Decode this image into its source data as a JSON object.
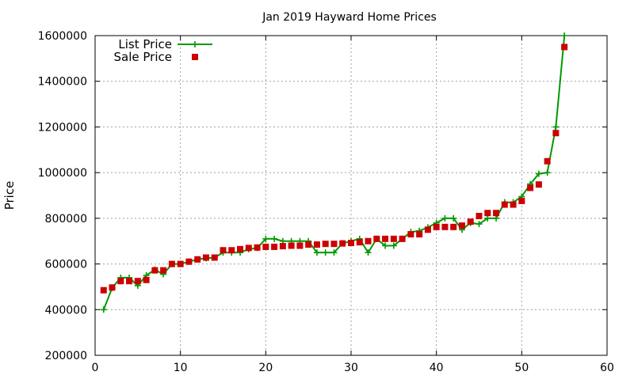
{
  "chart_data": {
    "type": "line",
    "title": "Jan 2019 Hayward Home Prices",
    "xlabel": "",
    "ylabel": "Price",
    "xlim": [
      0,
      60
    ],
    "ylim": [
      200000,
      1600000
    ],
    "x_ticks": [
      0,
      10,
      20,
      30,
      40,
      50,
      60
    ],
    "y_ticks": [
      200000,
      400000,
      600000,
      800000,
      1000000,
      1200000,
      1400000,
      1600000
    ],
    "grid": true,
    "legend_position": "top-left",
    "series": [
      {
        "name": "List Price",
        "style": "line-points",
        "color": "#009900",
        "x": [
          1,
          2,
          3,
          4,
          5,
          6,
          7,
          8,
          9,
          10,
          11,
          12,
          13,
          14,
          15,
          16,
          17,
          18,
          19,
          20,
          21,
          22,
          23,
          24,
          25,
          26,
          27,
          28,
          29,
          30,
          31,
          32,
          33,
          34,
          35,
          36,
          37,
          38,
          39,
          40,
          41,
          42,
          43,
          44,
          45,
          46,
          47,
          48,
          49,
          50,
          51,
          52,
          53,
          54,
          55
        ],
        "values": [
          400000,
          495000,
          540000,
          540000,
          505000,
          550000,
          575000,
          555000,
          600000,
          600000,
          610000,
          620000,
          625000,
          628000,
          650000,
          650000,
          650000,
          665000,
          670000,
          710000,
          710000,
          700000,
          700000,
          700000,
          700000,
          650000,
          650000,
          650000,
          690000,
          700000,
          710000,
          650000,
          710000,
          680000,
          680000,
          710000,
          740000,
          745000,
          760000,
          780000,
          800000,
          800000,
          750000,
          780000,
          775000,
          800000,
          800000,
          870000,
          870000,
          895000,
          950000,
          995000,
          1000000,
          1200000,
          1600000
        ]
      },
      {
        "name": "Sale Price",
        "style": "points",
        "color": "#cc0000",
        "x": [
          1,
          2,
          3,
          4,
          5,
          6,
          7,
          8,
          9,
          10,
          11,
          12,
          13,
          14,
          15,
          16,
          17,
          18,
          19,
          20,
          21,
          22,
          23,
          24,
          25,
          26,
          27,
          28,
          29,
          30,
          31,
          32,
          33,
          34,
          35,
          36,
          37,
          38,
          39,
          40,
          41,
          42,
          43,
          44,
          45,
          46,
          47,
          48,
          49,
          50,
          51,
          52,
          53,
          54,
          55
        ],
        "values": [
          485000,
          497000,
          525000,
          525000,
          525000,
          530000,
          572000,
          572000,
          600000,
          600000,
          610000,
          620000,
          628000,
          628000,
          660000,
          660000,
          665000,
          670000,
          672000,
          675000,
          675000,
          678000,
          680000,
          680000,
          685000,
          685000,
          688000,
          688000,
          690000,
          692000,
          695000,
          700000,
          710000,
          710000,
          710000,
          710000,
          730000,
          730000,
          750000,
          762000,
          762000,
          762000,
          768000,
          785000,
          810000,
          823000,
          823000,
          860000,
          860000,
          876000,
          933000,
          948000,
          1050000,
          1173000,
          1550000
        ]
      }
    ]
  }
}
